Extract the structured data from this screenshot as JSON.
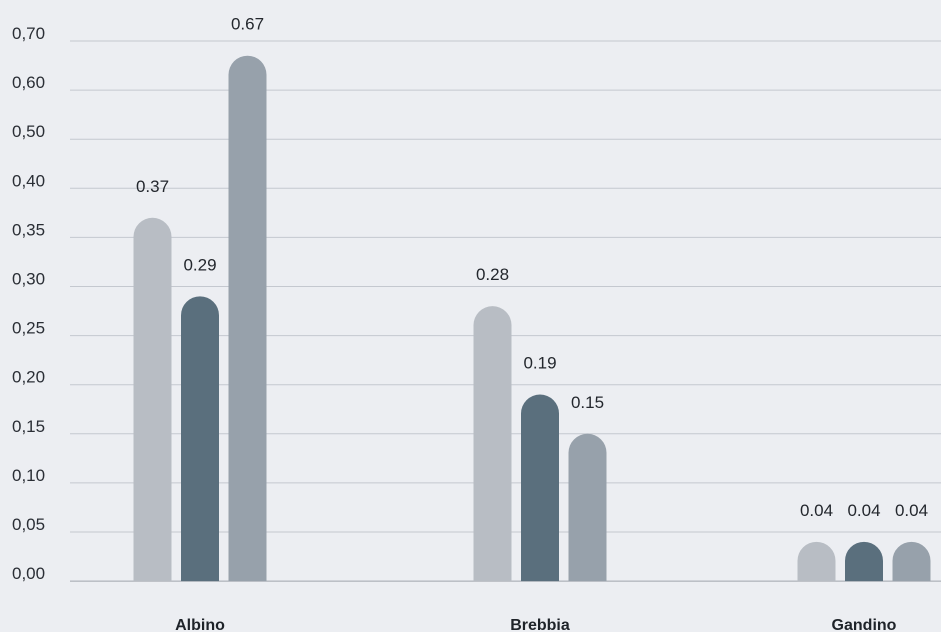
{
  "chart_data": {
    "type": "bar",
    "categories": [
      "Albino",
      "Brebbia",
      "Gandino"
    ],
    "series": [
      {
        "values": [
          0.37,
          0.28,
          0.04
        ],
        "color": "#b8bdc4"
      },
      {
        "values": [
          0.29,
          0.19,
          0.04
        ],
        "color": "#5a6f7d"
      },
      {
        "values": [
          0.67,
          0.15,
          0.04
        ],
        "color": "#97a1ab"
      }
    ],
    "data_labels": [
      [
        "0.37",
        "0.28",
        "0.04"
      ],
      [
        "0.29",
        "0.19",
        "0.04"
      ],
      [
        "0.67",
        "0.15",
        "0.04"
      ]
    ],
    "y_ticks": [
      {
        "value": 0.0,
        "label": "0,00"
      },
      {
        "value": 0.05,
        "label": "0,05"
      },
      {
        "value": 0.1,
        "label": "0,10"
      },
      {
        "value": 0.15,
        "label": "0,15"
      },
      {
        "value": 0.2,
        "label": "0,20"
      },
      {
        "value": 0.25,
        "label": "0,25"
      },
      {
        "value": 0.3,
        "label": "0,30"
      },
      {
        "value": 0.35,
        "label": "0,35"
      },
      {
        "value": 0.4,
        "label": "0,40"
      },
      {
        "value": 0.5,
        "label": "0,50"
      },
      {
        "value": 0.6,
        "label": "0,60"
      },
      {
        "value": 0.7,
        "label": "0,70"
      }
    ],
    "ylim": [
      0,
      0.7
    ],
    "grid": true,
    "legend": "none"
  }
}
